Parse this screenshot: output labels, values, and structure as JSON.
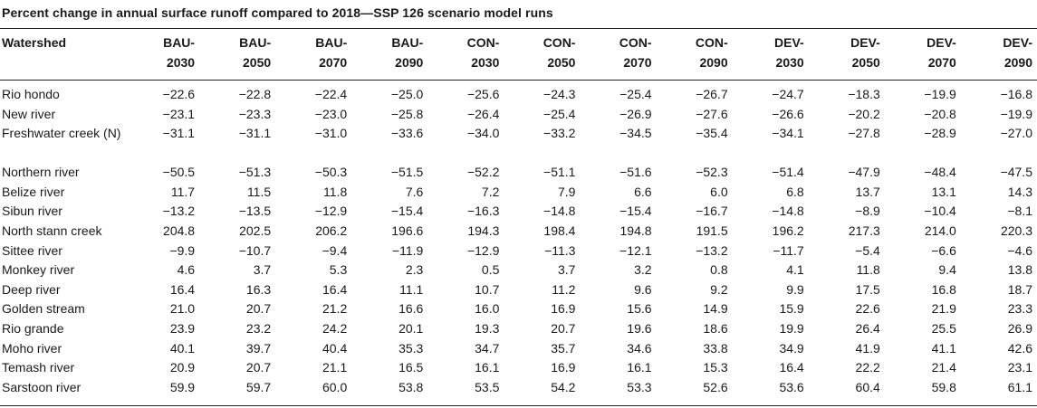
{
  "caption": "Percent change in annual surface runoff compared to 2018—SSP 126 scenario model runs",
  "table": {
    "first_header": "Watershed",
    "columns": [
      {
        "top": "BAU-",
        "bottom": "2030"
      },
      {
        "top": "BAU-",
        "bottom": "2050"
      },
      {
        "top": "BAU-",
        "bottom": "2070"
      },
      {
        "top": "BAU-",
        "bottom": "2090"
      },
      {
        "top": "CON-",
        "bottom": "2030"
      },
      {
        "top": "CON-",
        "bottom": "2050"
      },
      {
        "top": "CON-",
        "bottom": "2070"
      },
      {
        "top": "CON-",
        "bottom": "2090"
      },
      {
        "top": "DEV-",
        "bottom": "2030"
      },
      {
        "top": "DEV-",
        "bottom": "2050"
      },
      {
        "top": "DEV-",
        "bottom": "2070"
      },
      {
        "top": "DEV-",
        "bottom": "2090"
      }
    ],
    "rows": [
      {
        "name": "Rio hondo",
        "values": [
          "−22.6",
          "−22.8",
          "−22.4",
          "−25.0",
          "−25.6",
          "−24.3",
          "−25.4",
          "−26.7",
          "−24.7",
          "−18.3",
          "−19.9",
          "−16.8"
        ]
      },
      {
        "name": "New river",
        "values": [
          "−23.1",
          "−23.3",
          "−23.0",
          "−25.8",
          "−26.4",
          "−25.4",
          "−26.9",
          "−27.6",
          "−26.6",
          "−20.2",
          "−20.8",
          "−19.9"
        ]
      },
      {
        "name": "Freshwater creek (N)",
        "values": [
          "−31.1",
          "−31.1",
          "−31.0",
          "−33.6",
          "−34.0",
          "−33.2",
          "−34.5",
          "−35.4",
          "−34.1",
          "−27.8",
          "−28.9",
          "−27.0"
        ]
      },
      {
        "name": "Northern river",
        "values": [
          "−50.5",
          "−51.3",
          "−50.3",
          "−51.5",
          "−52.2",
          "−51.1",
          "−51.6",
          "−52.3",
          "−51.4",
          "−47.9",
          "−48.4",
          "−47.5"
        ]
      },
      {
        "name": "Belize river",
        "values": [
          "11.7",
          "11.5",
          "11.8",
          "7.6",
          "7.2",
          "7.9",
          "6.6",
          "6.0",
          "6.8",
          "13.7",
          "13.1",
          "14.3"
        ]
      },
      {
        "name": "Sibun river",
        "values": [
          "−13.2",
          "−13.5",
          "−12.9",
          "−15.4",
          "−16.3",
          "−14.8",
          "−15.4",
          "−16.7",
          "−14.8",
          "−8.9",
          "−10.4",
          "−8.1"
        ]
      },
      {
        "name": "North stann creek",
        "values": [
          "204.8",
          "202.5",
          "206.2",
          "196.6",
          "194.3",
          "198.4",
          "194.8",
          "191.5",
          "196.2",
          "217.3",
          "214.0",
          "220.3"
        ]
      },
      {
        "name": "Sittee river",
        "values": [
          "−9.9",
          "−10.7",
          "−9.4",
          "−11.9",
          "−12.9",
          "−11.3",
          "−12.1",
          "−13.2",
          "−11.7",
          "−5.4",
          "−6.6",
          "−4.6"
        ]
      },
      {
        "name": "Monkey river",
        "values": [
          "4.6",
          "3.7",
          "5.3",
          "2.3",
          "0.5",
          "3.7",
          "3.2",
          "0.8",
          "4.1",
          "11.8",
          "9.4",
          "13.8"
        ]
      },
      {
        "name": "Deep river",
        "values": [
          "16.4",
          "16.3",
          "16.4",
          "11.1",
          "10.7",
          "11.2",
          "9.6",
          "9.2",
          "9.9",
          "17.5",
          "16.8",
          "18.7"
        ]
      },
      {
        "name": "Golden stream",
        "values": [
          "21.0",
          "20.7",
          "21.2",
          "16.6",
          "16.0",
          "16.9",
          "15.6",
          "14.9",
          "15.9",
          "22.6",
          "21.9",
          "23.3"
        ]
      },
      {
        "name": "Rio grande",
        "values": [
          "23.9",
          "23.2",
          "24.2",
          "20.1",
          "19.3",
          "20.7",
          "19.6",
          "18.6",
          "19.9",
          "26.4",
          "25.5",
          "26.9"
        ]
      },
      {
        "name": "Moho river",
        "values": [
          "40.1",
          "39.7",
          "40.4",
          "35.3",
          "34.7",
          "35.7",
          "34.6",
          "33.8",
          "34.9",
          "41.9",
          "41.1",
          "42.6"
        ]
      },
      {
        "name": "Temash river",
        "values": [
          "20.9",
          "20.7",
          "21.1",
          "16.5",
          "16.1",
          "16.9",
          "16.1",
          "15.3",
          "16.4",
          "22.2",
          "21.4",
          "23.1"
        ]
      },
      {
        "name": "Sarstoon river",
        "values": [
          "59.9",
          "59.7",
          "60.0",
          "53.8",
          "53.5",
          "54.2",
          "53.3",
          "52.6",
          "53.6",
          "60.4",
          "59.8",
          "61.1"
        ]
      }
    ]
  }
}
